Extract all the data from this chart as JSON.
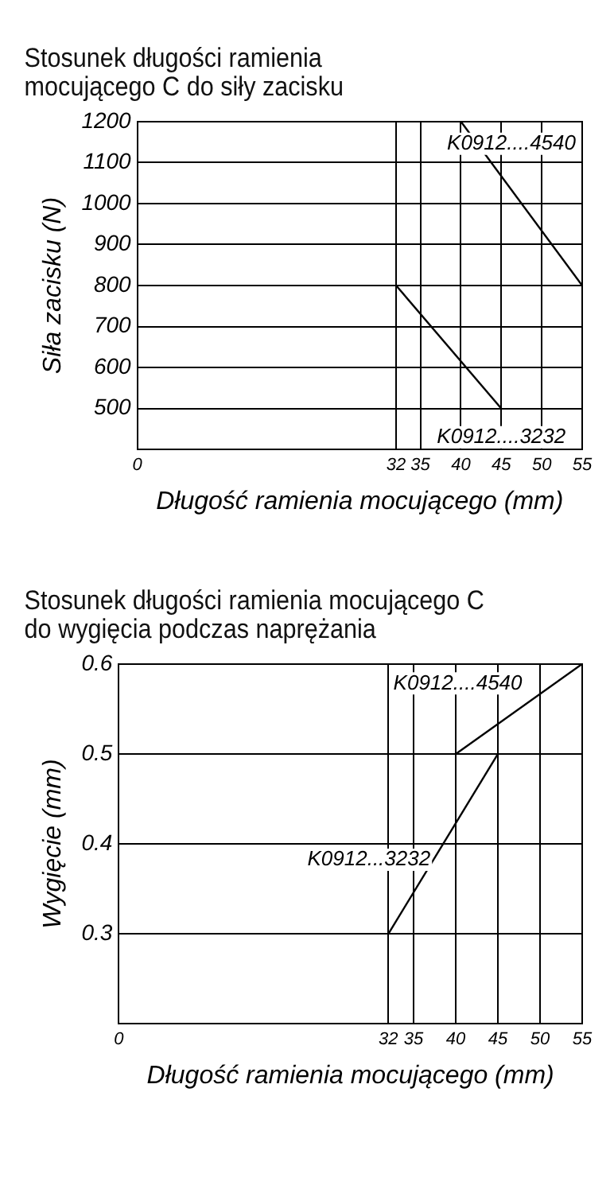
{
  "chart_data": [
    {
      "type": "line",
      "title": "Stosunek długości ramienia mocującego C do siły zacisku",
      "xlabel": "Długość ramienia mocującego (mm)",
      "ylabel": "Siła zacisku (N)",
      "series": [
        {
          "name": "K0912....4540",
          "color": "#000000",
          "x": [
            40,
            55
          ],
          "values": [
            1200,
            800
          ]
        },
        {
          "name": "K0912....3232",
          "color": "#000000",
          "x": [
            32,
            45
          ],
          "values": [
            800,
            500
          ]
        }
      ],
      "xlim": [
        0,
        55
      ],
      "xticks": [
        0,
        32,
        35,
        40,
        45,
        50,
        55
      ],
      "ylim": [
        400,
        1200
      ],
      "yticks": [
        500,
        600,
        700,
        800,
        900,
        1000,
        1100,
        1200
      ],
      "grid": true,
      "legend": false,
      "marker": "none",
      "line_style": "solid"
    },
    {
      "type": "line",
      "title": "Stosunek długości ramienia mocującego C do wygięcia podczas naprężania",
      "xlabel": "Długość ramienia mocującego (mm)",
      "ylabel": "Wygięcie (mm)",
      "series": [
        {
          "name": "K0912....4540",
          "color": "#000000",
          "x": [
            40,
            55
          ],
          "values": [
            0.5,
            0.6
          ]
        },
        {
          "name": "K0912...3232",
          "color": "#000000",
          "x": [
            32,
            45
          ],
          "values": [
            0.3,
            0.5
          ]
        }
      ],
      "xlim": [
        0,
        55
      ],
      "xticks": [
        0,
        32,
        35,
        40,
        45,
        50,
        55
      ],
      "ylim": [
        0.2,
        0.6
      ],
      "yticks": [
        0.3,
        0.4,
        0.5,
        0.6
      ],
      "grid": true,
      "legend": false,
      "marker": "none",
      "line_style": "solid"
    }
  ]
}
